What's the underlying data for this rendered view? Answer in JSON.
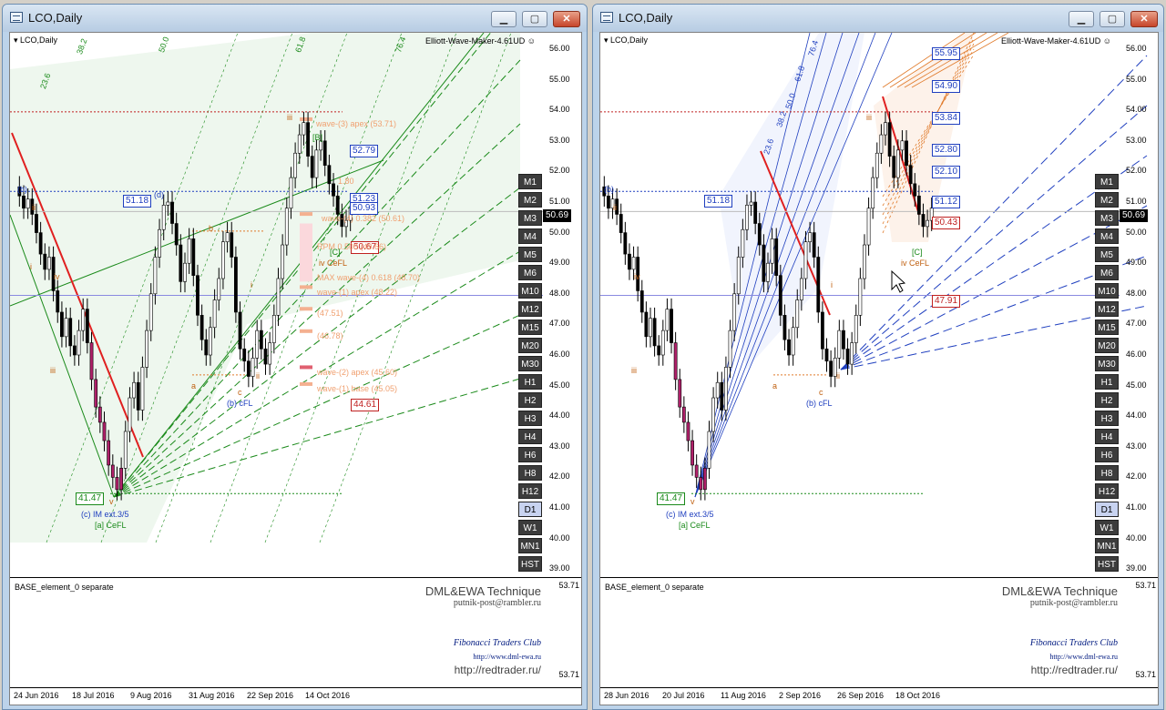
{
  "windows": [
    {
      "title": "LCO,Daily",
      "chart_label": "LCO,Daily",
      "indicator_label": "Elliott-Wave-Maker-4.61UD",
      "current_price": "50.69",
      "price_scale": [
        "56.00",
        "55.00",
        "54.00",
        "53.00",
        "52.00",
        "51.00",
        "50.00",
        "49.00",
        "48.00",
        "47.00",
        "46.00",
        "45.00",
        "44.00",
        "43.00",
        "42.00",
        "41.00",
        "40.00",
        "39.00"
      ],
      "timeframes": [
        "M1",
        "M2",
        "M3",
        "M4",
        "M5",
        "M6",
        "M10",
        "M12",
        "M15",
        "M20",
        "M30",
        "H1",
        "H2",
        "H3",
        "H4",
        "H6",
        "H8",
        "H12",
        "D1",
        "W1",
        "MN1",
        "HST"
      ],
      "active_timeframe": "D1",
      "price_tags": [
        "52.79",
        "51.23",
        "50.93",
        "50.67",
        "44.61"
      ],
      "wave_labels": {
        "w3apex": "wave-(3) apex (53.71)",
        "w4_382": "wave-(4) 0.382 (50.61)",
        "rpm": "RPM 0.500 (49.66)",
        "max618": "MAX wave-(4) 0.618 (48.70)",
        "w1apex": "wave-(1) apex (48.22)",
        "l4751": "(47.51)",
        "l4678": "(46.78)",
        "w2apex": "wave-(2) apex (45.60)",
        "w1base": "wave-(1) base (45.05)",
        "l180": "1.80"
      },
      "left_labels": {
        "b_paren": "(b)",
        "ii": "ii",
        "i": "i",
        "iv": "iv",
        "iii": "iii",
        "v": "v",
        "low": "41.47",
        "c_im": "(c) IM ext.3/5",
        "a_cefl": "[a] CeFL",
        "level5118": "51.18",
        "d_paren": "(d)",
        "a": "a",
        "b": "b",
        "c": "c",
        "b_cfl": "(b) cFL",
        "i2": "i",
        "ii2": "ii",
        "iii2": "iii",
        "B": "[B]",
        "iv_cefl": "iv CeFL",
        "C": "[C]"
      },
      "fib_angles": [
        "23.6",
        "38.2",
        "50.0",
        "61.8",
        "76.4"
      ],
      "sub": {
        "base": "BASE_element_0 separate",
        "tech": "DML&EWA Technique",
        "mail": "putnik-post@rambler.ru",
        "club": "Fibonacci Traders Club",
        "url1": "http://www.dml-ewa.ru",
        "url2": "http://redtrader.ru/",
        "top": "53.71",
        "bot": "53.71"
      },
      "dates": [
        "24 Jun 2016",
        "18 Jul 2016",
        "9 Aug 2016",
        "31 Aug 2016",
        "22 Sep 2016",
        "14 Oct 2016"
      ]
    },
    {
      "title": "LCO,Daily",
      "chart_label": "LCO,Daily",
      "indicator_label": "Elliott-Wave-Maker-4.61UD",
      "current_price": "50.69",
      "price_scale": [
        "56.00",
        "55.00",
        "54.00",
        "53.00",
        "52.00",
        "51.00",
        "50.00",
        "49.00",
        "48.00",
        "47.00",
        "46.00",
        "45.00",
        "44.00",
        "43.00",
        "42.00",
        "41.00",
        "40.00",
        "39.00"
      ],
      "timeframes": [
        "M1",
        "M2",
        "M3",
        "M4",
        "M5",
        "M6",
        "M10",
        "M12",
        "M15",
        "M20",
        "M30",
        "H1",
        "H2",
        "H3",
        "H4",
        "H6",
        "H8",
        "H12",
        "D1",
        "W1",
        "MN1",
        "HST"
      ],
      "active_timeframe": "D1",
      "price_tags_blue": [
        "55.95",
        "54.90",
        "53.84",
        "52.80",
        "52.10",
        "51.12"
      ],
      "price_tags_red": [
        "50.43",
        "47.91"
      ],
      "left_labels": {
        "b_paren": "(b)",
        "ii": "ii",
        "iv": "iv",
        "iii": "iii",
        "v": "v",
        "low": "41.47",
        "c_im": "(c) IM ext.3/5",
        "a_cefl": "[a] CeFL",
        "level5118": "51.18",
        "a": "a",
        "c": "c",
        "b_cfl": "(b) cFL",
        "i": "i",
        "ii2": "ii",
        "iii2": "iii",
        "iv_cefl": "iv CeFL",
        "C": "[C]"
      },
      "fib_angles": [
        "23.6",
        "38.2",
        "50.0",
        "61.8",
        "76.4"
      ],
      "sub": {
        "base": "BASE_element_0 separate",
        "tech": "DML&EWA Technique",
        "mail": "putnik-post@rambler.ru",
        "club": "Fibonacci Traders Club",
        "url1": "http://www.dml-ewa.ru",
        "url2": "http://redtrader.ru/",
        "top": "53.71",
        "bot": "53.71"
      },
      "dates": [
        "28 Jun 2016",
        "20 Jul 2016",
        "11 Aug 2016",
        "2 Sep 2016",
        "26 Sep 2016",
        "18 Oct 2016"
      ]
    }
  ],
  "colors": {
    "up": "#000000",
    "down": "#000000",
    "wave_red": "#e02020",
    "fib_green": "#1a8a1a",
    "fib_blue": "#1f3fbf",
    "fib_orange": "#e07a2a",
    "level_red": "#c02020"
  }
}
